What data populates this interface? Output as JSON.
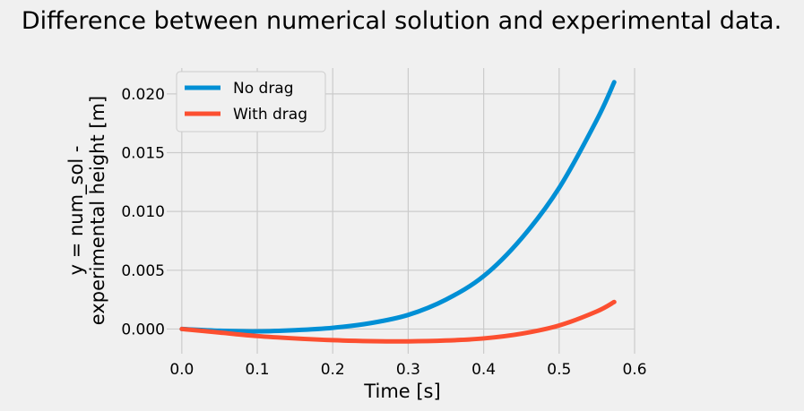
{
  "chart_data": {
    "type": "line",
    "title": "Difference between numerical solution and experimental data.",
    "xlabel": "Time [s]",
    "ylabel_lines": [
      "y = num_sol -",
      "experimental height [m]"
    ],
    "xlim": [
      -0.02,
      0.6
    ],
    "ylim": [
      -0.0021,
      0.0222
    ],
    "xticks": [
      0.0,
      0.1,
      0.2,
      0.3,
      0.4,
      0.5,
      0.6
    ],
    "xtick_labels": [
      "0.0",
      "0.1",
      "0.2",
      "0.3",
      "0.4",
      "0.5",
      "0.6"
    ],
    "yticks": [
      0.0,
      0.005,
      0.01,
      0.015,
      0.02
    ],
    "ytick_labels": [
      "0.000",
      "0.005",
      "0.010",
      "0.015",
      "0.020"
    ],
    "grid": true,
    "legend_position": "top-left",
    "series": [
      {
        "name": "No drag",
        "color": "#008fd5",
        "x": [
          0.0,
          0.05,
          0.1,
          0.15,
          0.2,
          0.25,
          0.3,
          0.35,
          0.4,
          0.45,
          0.5,
          0.55,
          0.573
        ],
        "y": [
          0.0,
          -0.00015,
          -0.0002,
          -0.0001,
          0.0001,
          0.0005,
          0.0012,
          0.0025,
          0.0045,
          0.0077,
          0.012,
          0.0178,
          0.021
        ]
      },
      {
        "name": "With drag",
        "color": "#fc4f30",
        "x": [
          0.0,
          0.05,
          0.1,
          0.15,
          0.2,
          0.25,
          0.3,
          0.35,
          0.4,
          0.45,
          0.5,
          0.55,
          0.573
        ],
        "y": [
          0.0,
          -0.0003,
          -0.0006,
          -0.0008,
          -0.00095,
          -0.00103,
          -0.00105,
          -0.00098,
          -0.0008,
          -0.0004,
          0.0003,
          0.0015,
          0.0023
        ]
      }
    ]
  }
}
